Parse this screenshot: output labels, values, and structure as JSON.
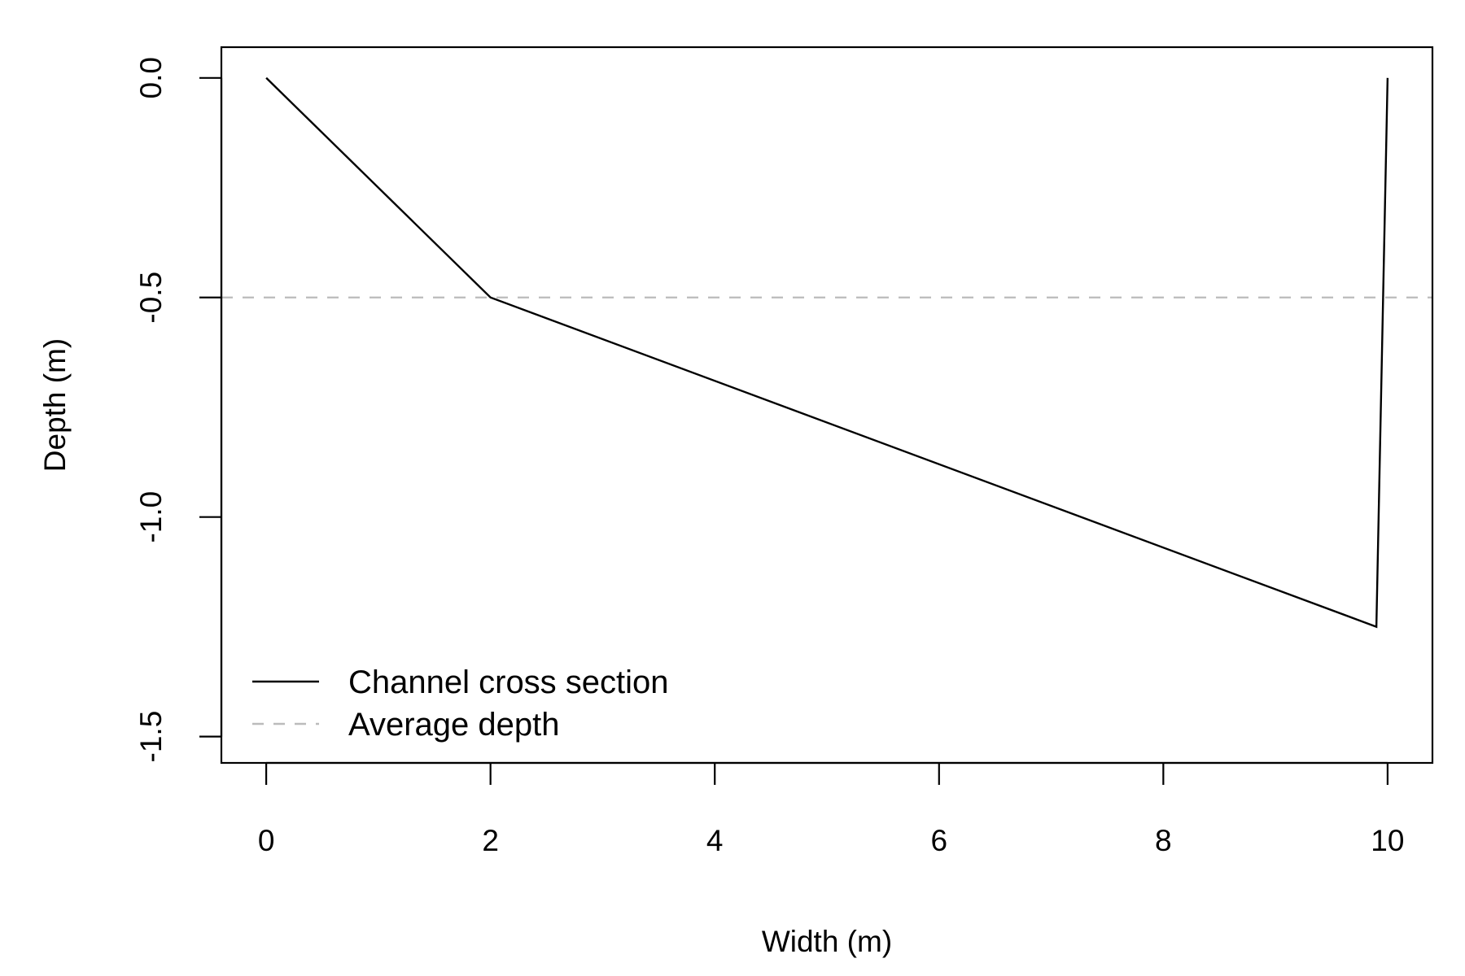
{
  "chart_data": {
    "type": "line",
    "xlabel": "Width (m)",
    "ylabel": "Depth (m)",
    "xlim": [
      -0.4,
      10.4
    ],
    "ylim": [
      -1.56,
      0.07
    ],
    "xticks": [
      0,
      2,
      4,
      6,
      8,
      10
    ],
    "xtick_labels": [
      "0",
      "2",
      "4",
      "6",
      "8",
      "10"
    ],
    "yticks": [
      0.0,
      -0.5,
      -1.0,
      -1.5
    ],
    "ytick_labels": [
      "0.0",
      "-0.5",
      "-1.0",
      "-1.5"
    ],
    "grid": false,
    "legend_position": "bottom-left",
    "series": [
      {
        "name": "Channel cross section",
        "style": "solid",
        "color": "#000000",
        "x": [
          0,
          2,
          9.9,
          10
        ],
        "y": [
          0,
          -0.5,
          -1.25,
          0
        ]
      },
      {
        "name": "Average depth",
        "style": "dashed",
        "color": "#bbbbbb",
        "type": "hline",
        "y": -0.5
      }
    ]
  }
}
